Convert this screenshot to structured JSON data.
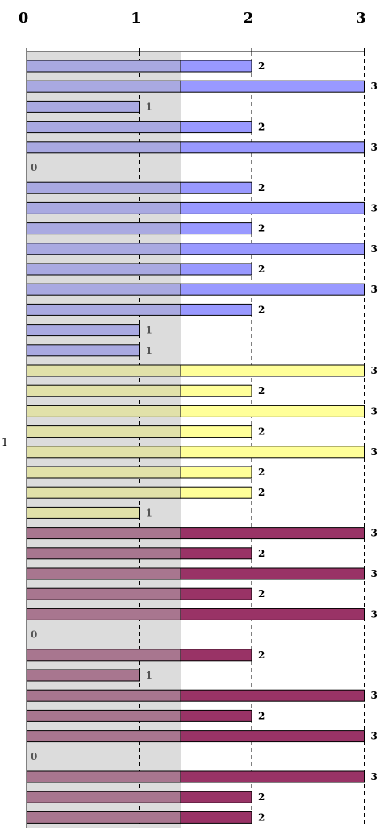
{
  "chart_data": {
    "type": "bar",
    "orientation": "horizontal",
    "side_label": "1",
    "xlim": [
      0,
      3
    ],
    "x_ticks": [
      "0",
      "1",
      "2",
      "3"
    ],
    "grid": "dashed vertical lines at 1, 2, 3",
    "highlight_band": [
      0,
      1.37
    ],
    "values": [
      2,
      3,
      1,
      2,
      3,
      0,
      2,
      3,
      2,
      3,
      2,
      3,
      2,
      1,
      1,
      3,
      2,
      3,
      2,
      3,
      2,
      2,
      1,
      3,
      2,
      3,
      2,
      3,
      0,
      2,
      1,
      3,
      2,
      3,
      0,
      3,
      2,
      2
    ],
    "groups": [
      {
        "color": "#9999ff",
        "band_color": "#a9a9e1",
        "from": 0,
        "to": 14
      },
      {
        "color": "#ffff99",
        "band_color": "#e1e1a9",
        "from": 15,
        "to": 22
      },
      {
        "color": "#993366",
        "band_color": "#a8768f",
        "from": 23,
        "to": 37
      }
    ]
  }
}
